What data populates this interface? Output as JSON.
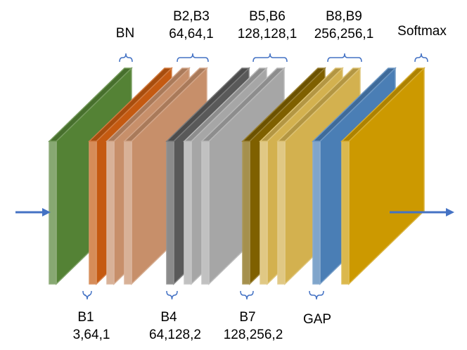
{
  "labels": {
    "bn": "BN",
    "b2_b3": "B2,B3",
    "b2_b3_params": "64,64,1",
    "b5_b6": "B5,B6",
    "b5_b6_params": "128,128,1",
    "b8_b9": "B8,B9",
    "b8_b9_params": "256,256,1",
    "softmax": "Softmax",
    "b1": "B1",
    "b1_params": "3,64,1",
    "b4": "B4",
    "b4_params": "64,128,2",
    "b7": "B7",
    "b7_params": "128,256,2",
    "gap": "GAP"
  },
  "colors": {
    "green": "#548235",
    "orange": "#c55a11",
    "orange_light": "#c78f6a",
    "gray_dark": "#595959",
    "gray_light": "#a6a6a6",
    "gold_dark": "#7f6000",
    "gold_light": "#d3b14f",
    "blue": "#4a7eb5",
    "gold": "#cc9900",
    "arrow": "#4472c4",
    "bracket": "#4472c4"
  }
}
